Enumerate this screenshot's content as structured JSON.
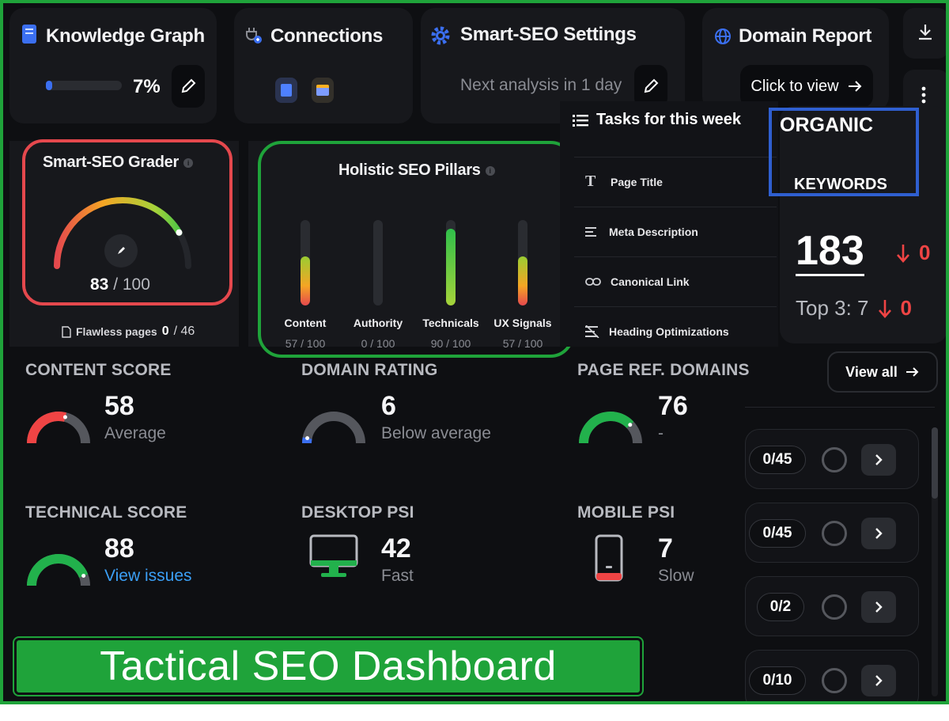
{
  "header": {
    "knowledge_graph": {
      "title": "Knowledge Graph",
      "progress_text": "7%",
      "progress_fraction": 0.07
    },
    "connections": {
      "title": "Connections"
    },
    "smart_seo_settings": {
      "title": "Smart-SEO Settings",
      "next_analysis": "Next analysis in 1 day"
    },
    "domain_report": {
      "title": "Domain Report",
      "cta": "Click to view"
    }
  },
  "grader": {
    "title": "Smart-SEO Grader",
    "score": "83",
    "max": "/ 100",
    "flawless_label": "Flawless pages",
    "flawless_value": "0",
    "flawless_total": "/ 46"
  },
  "pillars": {
    "title": "Holistic SEO Pillars",
    "items": [
      {
        "label": "Content",
        "value": "57 / 100",
        "fraction": 0.57
      },
      {
        "label": "Authority",
        "value": "0 / 100",
        "fraction": 0.0
      },
      {
        "label": "Technicals",
        "value": "90 / 100",
        "fraction": 0.9
      },
      {
        "label": "UX Signals",
        "value": "57 / 100",
        "fraction": 0.57
      }
    ]
  },
  "tasks": {
    "title": "Tasks for this week",
    "items": [
      {
        "label": "Page Title",
        "icon": "text-t-icon"
      },
      {
        "label": "Meta Description",
        "icon": "lines-icon"
      },
      {
        "label": "Canonical Link",
        "icon": "link-icon"
      },
      {
        "label": "Heading Optimizations",
        "icon": "strikethrough-icon"
      }
    ],
    "view_all": "View all",
    "progress_rows": [
      "0/45",
      "0/45",
      "0/2",
      "0/10"
    ]
  },
  "organic": {
    "title_line1": "ORGANIC",
    "title_line2": "KEYWORDS",
    "value": "183",
    "change": "0",
    "top3_label": "Top 3: 7",
    "top3_change": "0"
  },
  "metrics": {
    "content_score": {
      "label": "CONTENT SCORE",
      "value": "58",
      "sub": "Average",
      "fraction": 0.58
    },
    "domain_rating": {
      "label": "DOMAIN RATING",
      "value": "6",
      "sub": "Below average",
      "fraction": 0.06
    },
    "page_ref_domains": {
      "label": "PAGE REF. DOMAINS",
      "value": "76",
      "sub": "-",
      "fraction": 0.76
    },
    "technical_score": {
      "label": "TECHNICAL SCORE",
      "value": "88",
      "sub": "View issues",
      "fraction": 0.88
    },
    "desktop_psi": {
      "label": "DESKTOP PSI",
      "value": "42",
      "sub": "Fast"
    },
    "mobile_psi": {
      "label": "MOBILE PSI",
      "value": "7",
      "sub": "Slow"
    }
  },
  "banner": {
    "text": "Tactical SEO Dashboard"
  },
  "colors": {
    "accent_green": "#1fa33a",
    "highlight_red": "#e5484d",
    "highlight_blue": "#2f5fd0",
    "link_blue": "#3b9ff5",
    "danger": "#ef4444"
  }
}
